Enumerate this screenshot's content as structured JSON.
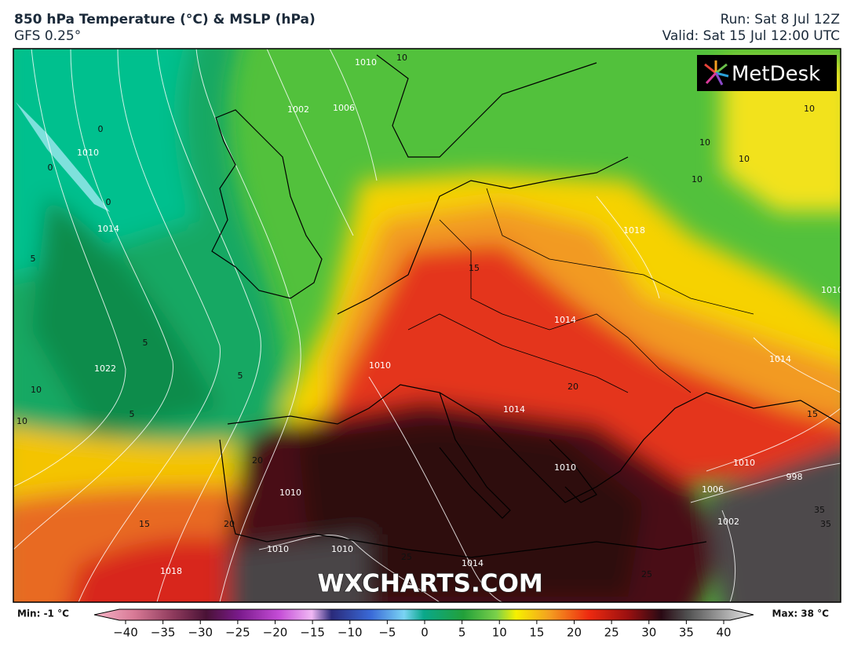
{
  "header": {
    "title": "850 hPa Temperature (°C) & MSLP (hPa)",
    "model": "GFS 0.25°",
    "run": "Run: Sat 8 Jul 12Z",
    "valid": "Valid: Sat 15 Jul 12:00 UTC"
  },
  "map": {
    "logo": "MetDesk",
    "watermark": "WXCHARTS.COM",
    "labels": [
      "1010",
      "10",
      "1002",
      "1006",
      "0",
      "0",
      "1010",
      "0",
      "1014",
      "5",
      "5",
      "5",
      "1022",
      "5",
      "10",
      "10",
      "15",
      "1018",
      "20",
      "20",
      "1010",
      "1010",
      "1010",
      "25",
      "1014",
      "25",
      "15",
      "1010",
      "1014",
      "20",
      "1014",
      "10",
      "10",
      "10",
      "10",
      "1018",
      "1010",
      "1014",
      "15",
      "1010",
      "1006",
      "998",
      "35",
      "35",
      "1002",
      "1010"
    ]
  },
  "colorbar": {
    "min_label": "Min: -1 °C",
    "max_label": "Max: 38 °C",
    "ticks": [
      {
        "value": -40,
        "label": "−40"
      },
      {
        "value": -35,
        "label": "−35"
      },
      {
        "value": -30,
        "label": "−30"
      },
      {
        "value": -25,
        "label": "−25"
      },
      {
        "value": -20,
        "label": "−20"
      },
      {
        "value": -15,
        "label": "−15"
      },
      {
        "value": -10,
        "label": "−10"
      },
      {
        "value": -5,
        "label": "−5"
      },
      0,
      5,
      10,
      15,
      20,
      25,
      30,
      35,
      40
    ]
  }
}
